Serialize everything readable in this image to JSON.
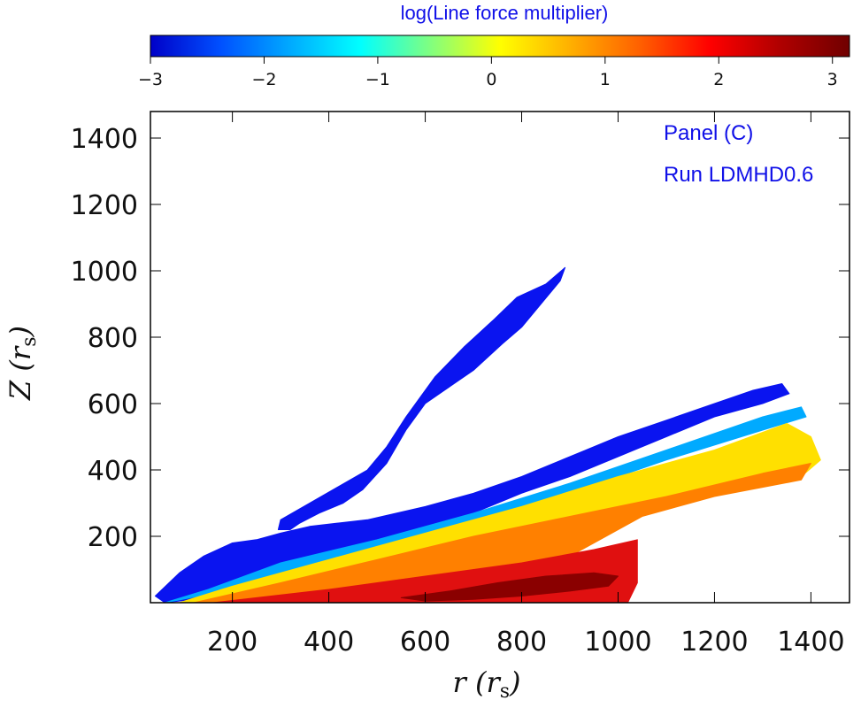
{
  "chart_data": {
    "type": "heatmap",
    "title": "",
    "colorbar": {
      "label": "log(Line force multiplier)",
      "range": [
        -3,
        3.15
      ],
      "ticks": [
        -3,
        -2,
        -1,
        0,
        1,
        2,
        3
      ],
      "tick_labels": [
        "−3",
        "−2",
        "−1",
        "0",
        "1",
        "2",
        "3"
      ],
      "placement": "top",
      "colormap": [
        "#0000c8",
        "#0050ff",
        "#00aaff",
        "#00ffff",
        "#80ff80",
        "#ffff00",
        "#ffb000",
        "#ff6000",
        "#ff0000",
        "#b00000",
        "#700000"
      ]
    },
    "xlabel": "r (r",
    "xlabel_sub": "s",
    "xlabel_close": ")",
    "ylabel": "Z (r",
    "ylabel_sub": "s",
    "ylabel_close": ")",
    "xlim": [
      30,
      1480
    ],
    "ylim": [
      0,
      1480
    ],
    "xticks": [
      200,
      400,
      600,
      800,
      1000,
      1200,
      1400
    ],
    "xtick_labels": [
      "200",
      "400",
      "600",
      "800",
      "1000",
      "1200",
      "1400"
    ],
    "yticks": [
      200,
      400,
      600,
      800,
      1000,
      1200,
      1400
    ],
    "ytick_labels": [
      "200",
      "400",
      "600",
      "800",
      "1000",
      "1200",
      "1400"
    ],
    "grid": false,
    "annotations": [
      "Panel (C)",
      "Run LDMHD0.6"
    ],
    "regions": [
      {
        "level": -3,
        "color_stop": "#0a14f0",
        "outline": [
          [
            300,
            250
          ],
          [
            360,
            300
          ],
          [
            420,
            350
          ],
          [
            480,
            400
          ],
          [
            520,
            470
          ],
          [
            560,
            560
          ],
          [
            620,
            680
          ],
          [
            680,
            770
          ],
          [
            740,
            850
          ],
          [
            790,
            920
          ],
          [
            850,
            960
          ],
          [
            890,
            1010
          ],
          [
            880,
            970
          ],
          [
            840,
            900
          ],
          [
            800,
            830
          ],
          [
            760,
            780
          ],
          [
            700,
            700
          ],
          [
            640,
            640
          ],
          [
            600,
            600
          ],
          [
            560,
            520
          ],
          [
            520,
            420
          ],
          [
            470,
            340
          ],
          [
            430,
            300
          ],
          [
            380,
            270
          ],
          [
            340,
            240
          ],
          [
            320,
            220
          ],
          [
            295,
            220
          ]
        ]
      },
      {
        "level": -3,
        "color_stop": "#0a14f0",
        "outline": [
          [
            40,
            20
          ],
          [
            90,
            90
          ],
          [
            140,
            140
          ],
          [
            200,
            180
          ],
          [
            250,
            190
          ],
          [
            300,
            210
          ],
          [
            360,
            230
          ],
          [
            420,
            240
          ],
          [
            480,
            250
          ],
          [
            540,
            270
          ],
          [
            600,
            290
          ],
          [
            700,
            330
          ],
          [
            800,
            380
          ],
          [
            900,
            440
          ],
          [
            1000,
            500
          ],
          [
            1100,
            550
          ],
          [
            1200,
            600
          ],
          [
            1280,
            640
          ],
          [
            1340,
            660
          ],
          [
            1355,
            630
          ],
          [
            1300,
            600
          ],
          [
            1200,
            560
          ],
          [
            1100,
            500
          ],
          [
            1000,
            440
          ],
          [
            900,
            380
          ],
          [
            800,
            330
          ],
          [
            700,
            270
          ],
          [
            600,
            210
          ],
          [
            500,
            150
          ],
          [
            400,
            100
          ],
          [
            300,
            60
          ],
          [
            200,
            30
          ],
          [
            120,
            10
          ],
          [
            60,
            0
          ]
        ]
      },
      {
        "level": -2,
        "color_stop": "#00aaff",
        "outline": [
          [
            60,
            0
          ],
          [
            150,
            40
          ],
          [
            300,
            120
          ],
          [
            500,
            190
          ],
          [
            700,
            270
          ],
          [
            900,
            360
          ],
          [
            1100,
            460
          ],
          [
            1300,
            560
          ],
          [
            1380,
            590
          ],
          [
            1390,
            560
          ],
          [
            1300,
            520
          ],
          [
            1100,
            430
          ],
          [
            900,
            330
          ],
          [
            700,
            240
          ],
          [
            500,
            160
          ],
          [
            300,
            90
          ],
          [
            150,
            25
          ]
        ]
      },
      {
        "level": 1,
        "color_stop": "#ffe000",
        "outline": [
          [
            90,
            0
          ],
          [
            200,
            50
          ],
          [
            400,
            130
          ],
          [
            600,
            210
          ],
          [
            800,
            290
          ],
          [
            1000,
            380
          ],
          [
            1200,
            460
          ],
          [
            1350,
            540
          ],
          [
            1400,
            500
          ],
          [
            1420,
            430
          ],
          [
            1380,
            380
          ],
          [
            1250,
            350
          ],
          [
            1100,
            300
          ],
          [
            1000,
            240
          ],
          [
            900,
            160
          ],
          [
            800,
            80
          ],
          [
            700,
            20
          ],
          [
            500,
            5
          ],
          [
            300,
            0
          ]
        ]
      },
      {
        "level": 1.6,
        "color_stop": "#ff8000",
        "outline": [
          [
            120,
            0
          ],
          [
            300,
            60
          ],
          [
            500,
            130
          ],
          [
            700,
            200
          ],
          [
            900,
            260
          ],
          [
            1100,
            320
          ],
          [
            1300,
            390
          ],
          [
            1400,
            420
          ],
          [
            1380,
            370
          ],
          [
            1200,
            320
          ],
          [
            1050,
            260
          ],
          [
            950,
            180
          ],
          [
            850,
            100
          ],
          [
            700,
            40
          ],
          [
            500,
            10
          ],
          [
            300,
            0
          ]
        ]
      },
      {
        "level": 2.2,
        "color_stop": "#e01010",
        "outline": [
          [
            160,
            0
          ],
          [
            400,
            40
          ],
          [
            600,
            80
          ],
          [
            800,
            120
          ],
          [
            950,
            160
          ],
          [
            1040,
            190
          ],
          [
            1040,
            60
          ],
          [
            1020,
            0
          ],
          [
            800,
            0
          ],
          [
            600,
            0
          ],
          [
            400,
            0
          ]
        ]
      },
      {
        "level": 2.9,
        "color_stop": "#8a0000",
        "outline": [
          [
            550,
            15
          ],
          [
            650,
            35
          ],
          [
            750,
            60
          ],
          [
            850,
            80
          ],
          [
            950,
            90
          ],
          [
            1000,
            80
          ],
          [
            980,
            50
          ],
          [
            900,
            35
          ],
          [
            800,
            20
          ],
          [
            700,
            10
          ],
          [
            600,
            5
          ]
        ]
      }
    ]
  }
}
